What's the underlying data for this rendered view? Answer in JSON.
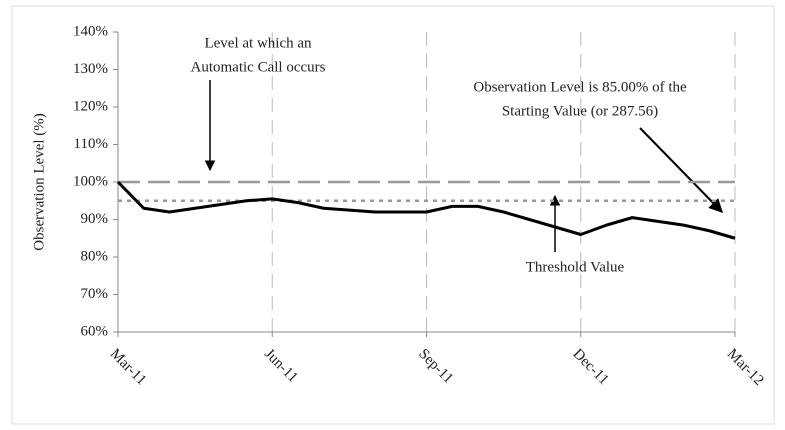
{
  "chart_data": {
    "type": "line",
    "y_label": "Observation Level (%)",
    "categories": [
      "Mar-11",
      null,
      null,
      null,
      null,
      null,
      "Jun-11",
      null,
      null,
      null,
      null,
      null,
      "Sep-11",
      null,
      null,
      null,
      null,
      null,
      "Dec-11",
      null,
      null,
      null,
      null,
      null,
      "Mar-12"
    ],
    "values": [
      100,
      93,
      92,
      93,
      94,
      95,
      95.5,
      94.5,
      93,
      92.5,
      92,
      92,
      92,
      93.5,
      93.5,
      92,
      90,
      88,
      86,
      88.5,
      90.5,
      89.5,
      88.5,
      87,
      85
    ],
    "color": "#000000",
    "ylim": [
      60,
      140
    ],
    "yticks": [
      {
        "value": 60,
        "label": "60%"
      },
      {
        "value": 70,
        "label": "70%"
      },
      {
        "value": 80,
        "label": "80%"
      },
      {
        "value": 90,
        "label": "90%"
      },
      {
        "value": 100,
        "label": "100%"
      },
      {
        "value": 110,
        "label": "110%"
      },
      {
        "value": 120,
        "label": "120%"
      },
      {
        "value": 130,
        "label": "130%"
      },
      {
        "value": 140,
        "label": "140%"
      }
    ],
    "reference_lines": [
      {
        "value": 100,
        "style": "dashed",
        "color": "#999999"
      },
      {
        "value": 95,
        "style": "dotted",
        "color": "#999999"
      }
    ],
    "annotations": [
      {
        "lines": [
          "Level at which an",
          "Automatic Call occurs"
        ]
      },
      {
        "lines": [
          "Observation Level is 85.00% of the",
          "Starting Value (or 287.56)"
        ]
      },
      {
        "lines": [
          "Threshold Value"
        ]
      }
    ],
    "grid": true
  }
}
